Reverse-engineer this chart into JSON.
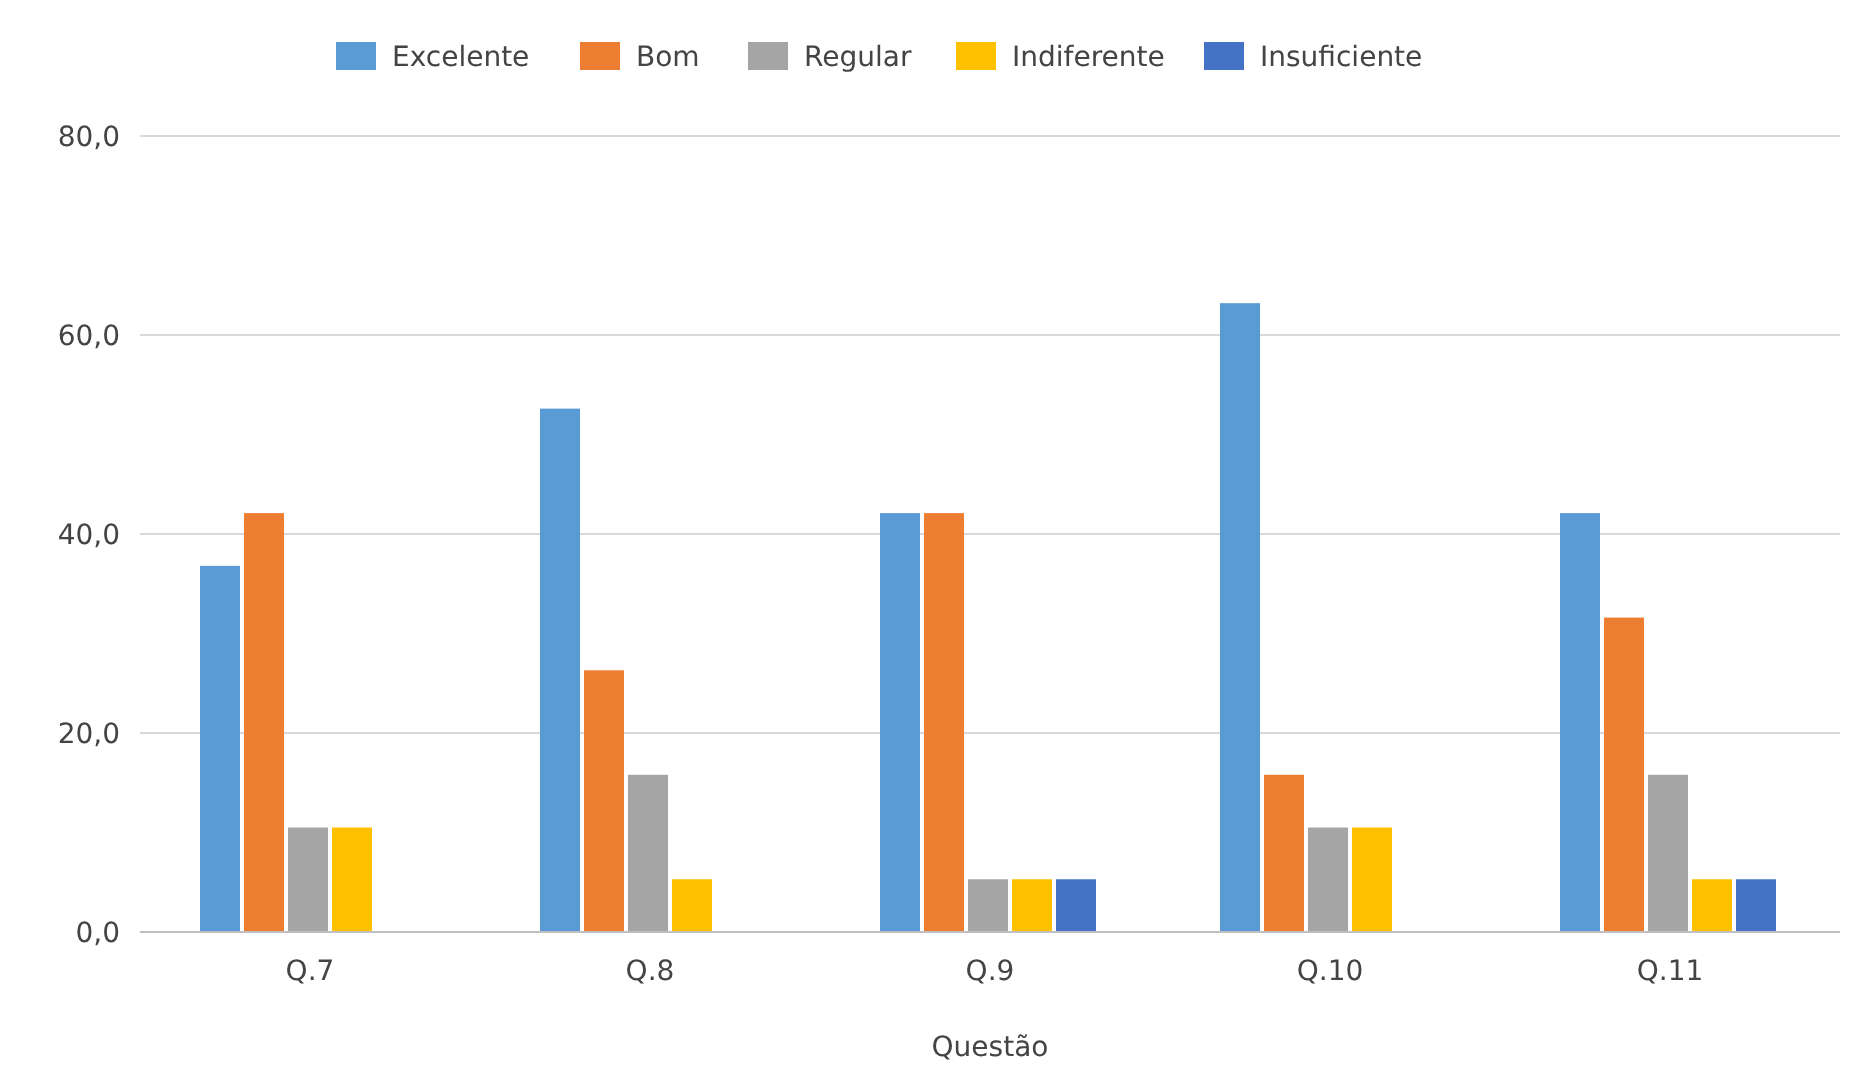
{
  "chart_data": {
    "type": "bar",
    "xlabel": "Questão",
    "categories": [
      "Q.7",
      "Q.8",
      "Q.9",
      "Q.10",
      "Q.11"
    ],
    "series": [
      {
        "name": "Excelente",
        "color": "#5b9bd5",
        "values": [
          36.8,
          52.6,
          42.1,
          63.2,
          42.1
        ]
      },
      {
        "name": "Bom",
        "color": "#ed7d31",
        "values": [
          42.1,
          26.3,
          42.1,
          15.8,
          31.6
        ]
      },
      {
        "name": "Regular",
        "color": "#a5a5a5",
        "values": [
          10.5,
          15.8,
          5.3,
          10.5,
          15.8
        ]
      },
      {
        "name": "Indiferente",
        "color": "#ffc000",
        "values": [
          10.5,
          5.3,
          5.3,
          10.5,
          5.3
        ]
      },
      {
        "name": "Insuficiente",
        "color": "#4472c4",
        "values": [
          null,
          null,
          5.3,
          null,
          5.3
        ]
      }
    ],
    "ylim": [
      0,
      80
    ],
    "yticks": [
      {
        "value": 0,
        "label": "0,0"
      },
      {
        "value": 20,
        "label": "20,0"
      },
      {
        "value": 40,
        "label": "40,0"
      },
      {
        "value": 60,
        "label": "60,0"
      },
      {
        "value": 80,
        "label": "80,0"
      }
    ],
    "grid": "y",
    "legend": "top"
  }
}
